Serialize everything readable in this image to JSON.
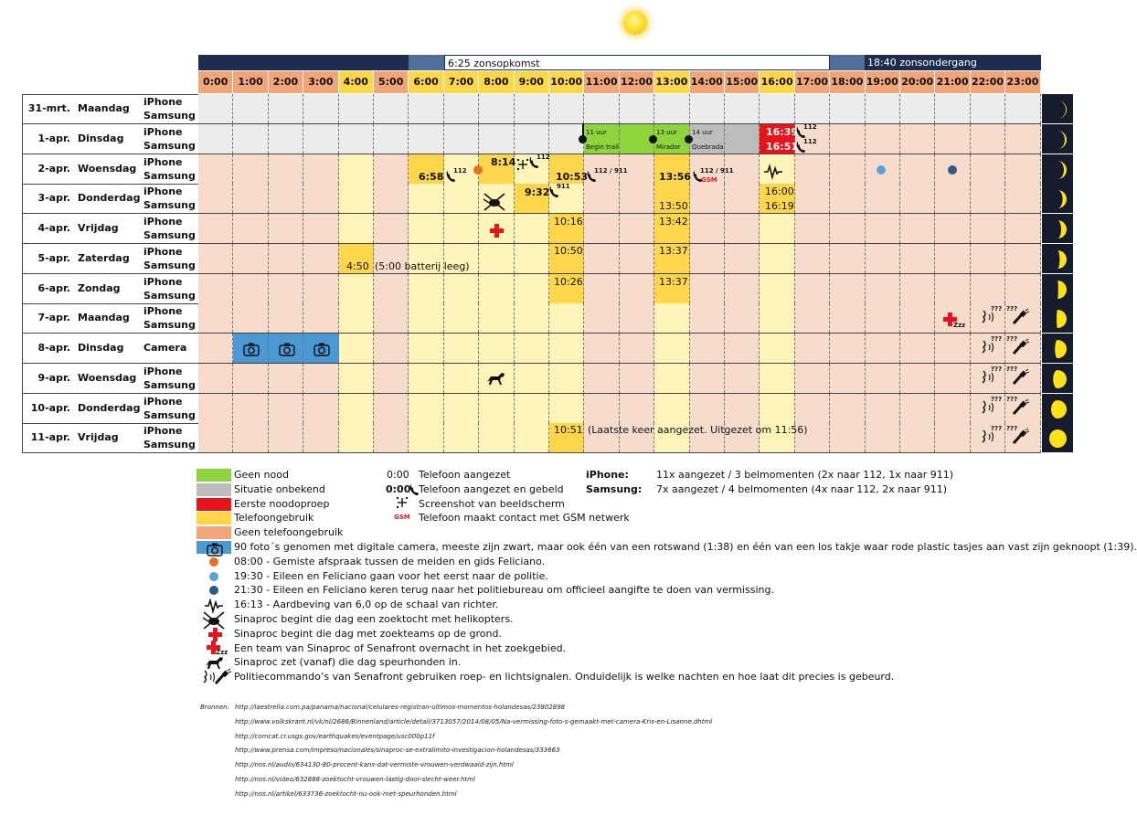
{
  "sun_icon": "sun-icon",
  "sunbar": {
    "sunrise_label": "6:25 zonsopkomst",
    "sunset_label": "18:40 zonsondergang"
  },
  "hours": [
    "0:00",
    "1:00",
    "2:00",
    "3:00",
    "4:00",
    "5:00",
    "6:00",
    "7:00",
    "8:00",
    "9:00",
    "10:00",
    "11:00",
    "12:00",
    "13:00",
    "14:00",
    "15:00",
    "16:00",
    "17:00",
    "18:00",
    "19:00",
    "20:00",
    "21:00",
    "22:00",
    "23:00"
  ],
  "hour_colors": [
    "#f2a578",
    "#f2a578",
    "#f2a578",
    "#f2a578",
    "#fdd64a",
    "#f2a578",
    "#fdd64a",
    "#fdd64a",
    "#fdd64a",
    "#fdd64a",
    "#fdd64a",
    "#f2a578",
    "#f2a578",
    "#fdd64a",
    "#f2a578",
    "#f2a578",
    "#fdd64a",
    "#f2a578",
    "#f2a578",
    "#f2a578",
    "#f2a578",
    "#f2a578",
    "#f2a578",
    "#f2a578"
  ],
  "colors": {
    "geen_nood": "#8ed43c",
    "onbekend": "#bdbdbd",
    "noodoproep": "#e8141c",
    "telefoongebruik": "#fdd64a",
    "geen_telefoongebruik": "#f2a578",
    "camera": "#4a98d4",
    "salmon_light": "#f8dccb",
    "grey_light": "#ececec",
    "yellow_light": "#fef3b8",
    "dot_orange": "#e37222",
    "dot_lightblue": "#5ba4d8",
    "dot_darkblue": "#2e5a84"
  },
  "rows": [
    {
      "date": "31-mrt.",
      "day": "Maandag",
      "devices": [
        "iPhone",
        "Samsung"
      ]
    },
    {
      "date": "1-apr.",
      "day": "Dinsdag",
      "devices": [
        "iPhone",
        "Samsung"
      ]
    },
    {
      "date": "2-apr.",
      "day": "Woensdag",
      "devices": [
        "iPhone",
        "Samsung"
      ]
    },
    {
      "date": "3-apr.",
      "day": "Donderdag",
      "devices": [
        "iPhone",
        "Samsung"
      ]
    },
    {
      "date": "4-apr.",
      "day": "Vrijdag",
      "devices": [
        "iPhone",
        "Samsung"
      ]
    },
    {
      "date": "5-apr.",
      "day": "Zaterdag",
      "devices": [
        "iPhone",
        "Samsung"
      ]
    },
    {
      "date": "6-apr.",
      "day": "Zondag",
      "devices": [
        "iPhone",
        "Samsung"
      ]
    },
    {
      "date": "7-apr.",
      "day": "Maandag",
      "devices": [
        "iPhone",
        "Samsung"
      ]
    },
    {
      "date": "8-apr.",
      "day": "Dinsdag",
      "devices": [
        "Camera"
      ]
    },
    {
      "date": "9-apr.",
      "day": "Woensdag",
      "devices": [
        "iPhone",
        "Samsung"
      ]
    },
    {
      "date": "10-apr.",
      "day": "Donderdag",
      "devices": [
        "iPhone",
        "Samsung"
      ]
    },
    {
      "date": "11-apr.",
      "day": "Vrijdag",
      "devices": [
        "iPhone",
        "Samsung"
      ]
    }
  ],
  "moon_phases": [
    0.05,
    0.1,
    0.15,
    0.22,
    0.3,
    0.38,
    0.46,
    0.55,
    0.64,
    0.74,
    0.85,
    0.95
  ],
  "events": {
    "r1": {
      "trail_start_label": "11 uur",
      "trail_start_sub": "Begin trail",
      "mirador_label": "13 uur",
      "mirador_sub": "Mirador",
      "quebrada_label": "14 uur",
      "quebrada_sub": "Quebrada",
      "call_iphone": "16:39",
      "call_samsung": "16:51",
      "num_112_a": "112",
      "num_112_b": "112"
    },
    "r2": {
      "samsung_658": "6:58",
      "num_112": "112",
      "iphone_814": "8:14",
      "num_112_b": "112",
      "samsung_1053": "10:53",
      "num_112_911": "112 / 911",
      "samsung_1356": "13:56",
      "num_112_911_b": "112 / 911",
      "gsm": "GSM"
    },
    "r3": {
      "iphone_932": "9:32",
      "num_911": "911",
      "samsung_1350": "13:50",
      "iphone_1600": "16:00",
      "samsung_1619": "16:19"
    },
    "r4": {
      "t1": "10:16",
      "t2": "13:42"
    },
    "r5": {
      "t1": "4:50",
      "note": "(5:00 batterij leeg)",
      "t2": "10:50",
      "t3": "13:37"
    },
    "r6": {
      "t1": "10:26",
      "t2": "13:37"
    },
    "r11": {
      "t1": "10:51",
      "note": "(Laatste keer aangezet. Uitgezet om 11:56)"
    },
    "qqq": "???"
  },
  "legend": {
    "colors": [
      {
        "label": "Geen nood",
        "color": "#8ed43c"
      },
      {
        "label": "Situatie onbekend",
        "color": "#bdbdbd"
      },
      {
        "label": "Eerste noodoproep",
        "color": "#e8141c"
      },
      {
        "label": "Telefoongebruik",
        "color": "#fdd64a"
      },
      {
        "label": "Geen telefoongebruik",
        "color": "#f2a578"
      }
    ],
    "sym_time_plain": "0:00",
    "sym_time_plain_label": "Telefoon aangezet",
    "sym_time_bold": "0:00",
    "sym_time_bold_label": "Telefoon aangezet en gebeld",
    "sym_screenshot_label": "Screenshot van beeldscherm",
    "sym_gsm": "GSM",
    "sym_gsm_label": "Telefoon maakt contact met GSM netwerk",
    "iphone_key": "iPhone:",
    "iphone_val": "11x aangezet / 3 belmomenten (2x naar 112, 1x naar 911)",
    "samsung_key": "Samsung:",
    "samsung_val": "7x aangezet / 4 belmomenten (4x naar 112, 2x naar 911)",
    "camera_label": "90 foto´s genomen met digitale camera, meeste zijn zwart, maar ook één van een rotswand (1:38) en één van een los takje waar rode plastic tasjes aan vast zijn geknoopt (1:39).",
    "items": [
      "08:00 - Gemiste afspraak tussen de meiden en gids Feliciano.",
      "19:30 - Eileen en Feliciano gaan voor het eerst naar de politie.",
      "21:30 - Eileen en Feliciano keren terug naar het politiebureau om officieel aangifte te doen van vermissing.",
      "16:13 - Aardbeving van 6,0 op de schaal van richter.",
      "Sinaproc begint die dag een zoektocht met helikopters.",
      "Sinaproc begint die dag met zoekteams op de grond.",
      "Een team van Sinaproc of Senafront overnacht in het zoekgebied.",
      "Sinaproc zet (vanaf) die dag speurhonden in.",
      "Politiecommando’s van Senafront gebruiken roep- en lichtsignalen. Onduidelijk is welke nachten en hoe laat dit precies is gebeurd."
    ]
  },
  "sources": {
    "label": "Bronnen:",
    "urls": [
      "http://laestrella.com.pa/panama/nacional/celulares-registran-ultimos-momentos-holandesas/23802898",
      "http://www.volkskrant.nl/vk/nl/2686/Binnenland/article/detail/3713057/2014/08/05/Na-vermissing-foto-s-gemaakt-met-camera-Kris-en-Lisanne.dhtml",
      "http://comcat.cr.usgs.gov/earthquakes/eventpage/usc000p11f",
      "http://www.prensa.com/impreso/nacionales/sinaproc-se-extralimito-investigacion-holandesas/333663",
      "http://nos.nl/audio/634130-80-procent-kans-dat-vermiste-vrouwen-verdwaald-zijn.html",
      "http://nos.nl/video/632888-zoektocht-vrouwen-lastig-door-slecht-weer.html",
      "http://nos.nl/artikel/633736-zoektocht-nu-ook-met-speurhonden.html"
    ]
  }
}
